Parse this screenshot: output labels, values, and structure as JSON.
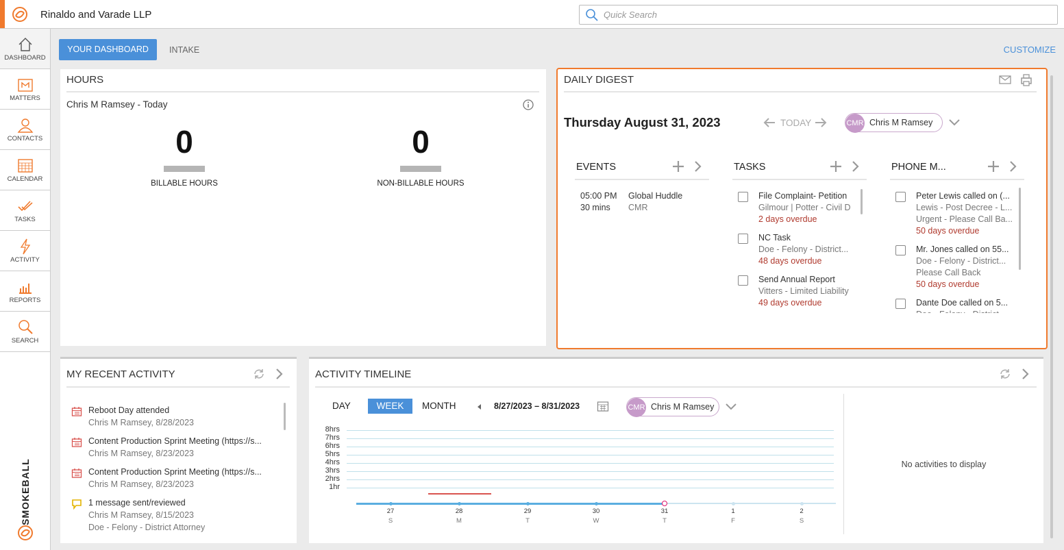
{
  "header": {
    "firm": "Rinaldo and Varade LLP",
    "search_placeholder": "Quick Search"
  },
  "nav": [
    "DASHBOARD",
    "MATTERS",
    "CONTACTS",
    "CALENDAR",
    "TASKS",
    "ACTIVITY",
    "REPORTS",
    "SEARCH"
  ],
  "brand": "SMOKEBALL",
  "tabs": [
    "YOUR DASHBOARD",
    "INTAKE"
  ],
  "customize": "CUSTOMIZE",
  "hours": {
    "title": "HOURS",
    "subtitle": "Chris M Ramsey - Today",
    "stats": [
      {
        "value": 0,
        "label": "BILLABLE HOURS"
      },
      {
        "value": 0,
        "label": "NON-BILLABLE HOURS"
      }
    ]
  },
  "digest": {
    "title": "DAILY DIGEST",
    "date": "Thursday August 31, 2023",
    "today": "TODAY",
    "user": {
      "initials": "CMR",
      "name": "Chris M Ramsey"
    },
    "events": {
      "title": "EVENTS",
      "items": [
        {
          "time": "05:00 PM",
          "duration": "30 mins",
          "title": "Global Huddle",
          "sub": "CMR"
        }
      ]
    },
    "tasks": {
      "title": "TASKS",
      "items": [
        {
          "title": "File Complaint- Petition",
          "lines": [
            "Gilmour | Potter - Civil D"
          ],
          "due": "2 days overdue"
        },
        {
          "title": "NC Task",
          "lines": [
            "Doe - Felony - District..."
          ],
          "due": "48 days overdue"
        },
        {
          "title": "Send Annual Report",
          "lines": [
            "Vitters - Limited Liability"
          ],
          "due": "49 days overdue"
        }
      ]
    },
    "phone": {
      "title": "PHONE M...",
      "items": [
        {
          "title": "Peter Lewis called on (...",
          "lines": [
            "Lewis - Post Decree - L...",
            "Urgent - Please Call Ba..."
          ],
          "due": "50 days overdue"
        },
        {
          "title": "Mr. Jones called on 55...",
          "lines": [
            "Doe - Felony - District...",
            "Please Call Back"
          ],
          "due": "50 days overdue"
        },
        {
          "title": "Dante Doe called on 5...",
          "lines": [
            "Doe - Felony - District"
          ],
          "due": ""
        }
      ]
    }
  },
  "recent": {
    "title": "MY RECENT ACTIVITY",
    "items": [
      {
        "icon": "calendar",
        "title": "Reboot Day attended",
        "lines": [
          "Chris M Ramsey, 8/28/2023"
        ]
      },
      {
        "icon": "calendar",
        "title": "Content Production Sprint Meeting (https://s...",
        "lines": [
          "Chris M Ramsey, 8/23/2023"
        ]
      },
      {
        "icon": "calendar",
        "title": "Content Production Sprint Meeting (https://s...",
        "lines": [
          "Chris M Ramsey, 8/23/2023"
        ]
      },
      {
        "icon": "message",
        "title": "1 message sent/reviewed",
        "lines": [
          "Chris M Ramsey, 8/15/2023",
          "Doe - Felony - District Attorney"
        ]
      }
    ]
  },
  "timeline": {
    "title": "ACTIVITY TIMELINE",
    "views": [
      "DAY",
      "WEEK",
      "MONTH"
    ],
    "active_view": "WEEK",
    "range": "8/27/2023 – 8/31/2023",
    "user": {
      "initials": "CMR",
      "name": "Chris M Ramsey"
    },
    "yticks": [
      "8hrs",
      "7hrs",
      "6hrs",
      "5hrs",
      "4hrs",
      "3hrs",
      "2hrs",
      "1hr"
    ],
    "days": [
      {
        "date": "27",
        "dow": "S"
      },
      {
        "date": "28",
        "dow": "M"
      },
      {
        "date": "29",
        "dow": "T"
      },
      {
        "date": "30",
        "dow": "W"
      },
      {
        "date": "31",
        "dow": "T"
      },
      {
        "date": "1",
        "dow": "F"
      },
      {
        "date": "2",
        "dow": "S"
      }
    ],
    "today_index": 4,
    "empty": "No activities to display"
  }
}
